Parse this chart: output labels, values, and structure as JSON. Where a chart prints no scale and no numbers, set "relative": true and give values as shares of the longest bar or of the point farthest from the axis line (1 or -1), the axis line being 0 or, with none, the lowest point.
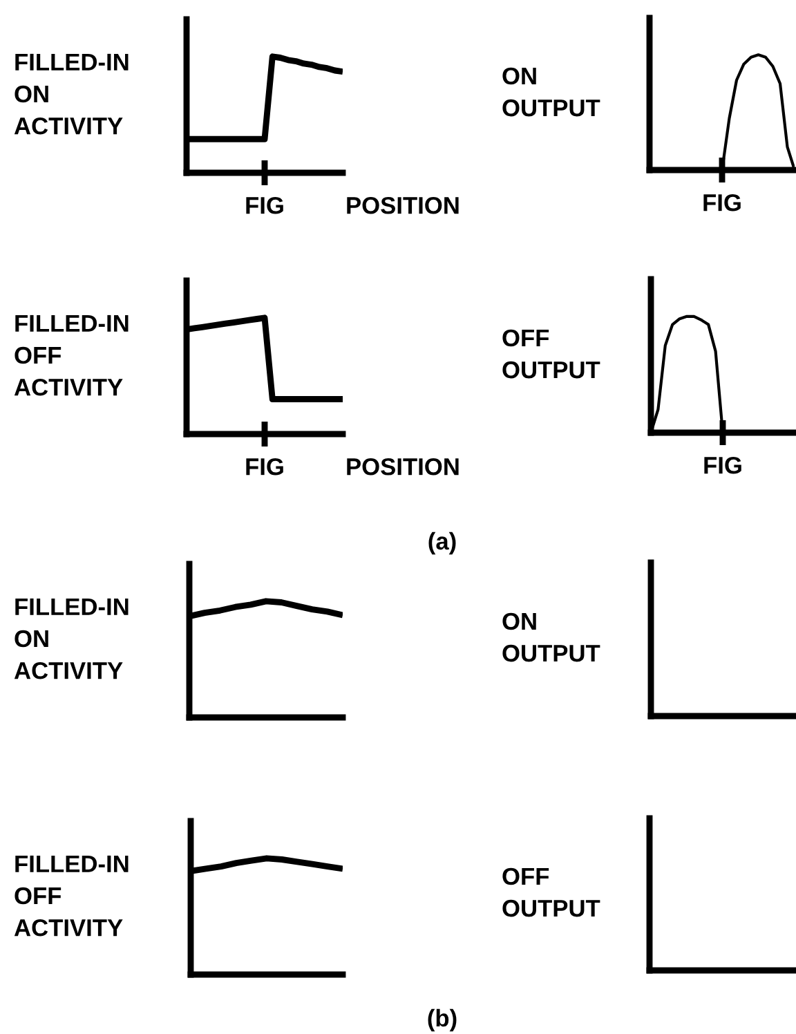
{
  "chart_data": [
    {
      "type": "line",
      "ylabel": "FILLED-IN\nON\nACTIVITY",
      "xlabel": "POSITION",
      "relative": true,
      "annotations": [
        "FIG"
      ],
      "categories": [
        null,
        null,
        null,
        null,
        null,
        null,
        null,
        null,
        null,
        null,
        null,
        null,
        null,
        null,
        null,
        null,
        null,
        null,
        null,
        null,
        null
      ],
      "series": [
        {
          "color": "#000000",
          "values": [
            0.29,
            0.29,
            0.29,
            0.29,
            0.29,
            0.29,
            0.29,
            0.29,
            0.29,
            0.29,
            0.29,
            1,
            0.99,
            0.97,
            0.96,
            0.94,
            0.93,
            0.91,
            0.9,
            0.88,
            0.87
          ]
        }
      ]
    },
    {
      "type": "line",
      "ylabel": "ON\nOUTPUT",
      "relative": true,
      "annotations": [
        "FIG"
      ],
      "categories": [
        null,
        null,
        null,
        null,
        null,
        null,
        null,
        null,
        null,
        null,
        null,
        null,
        null,
        null,
        null,
        null,
        null,
        null,
        null,
        null,
        null
      ],
      "series": [
        {
          "color": "#000000",
          "values": [
            null,
            null,
            null,
            null,
            null,
            null,
            null,
            null,
            null,
            null,
            0,
            0.45,
            0.78,
            0.92,
            0.98,
            1,
            0.98,
            0.9,
            0.75,
            0.2,
            0
          ]
        }
      ]
    },
    {
      "type": "line",
      "ylabel": "FILLED-IN\nOFF\nACTIVITY",
      "xlabel": "POSITION",
      "relative": true,
      "annotations": [
        "FIG"
      ],
      "categories": [
        null,
        null,
        null,
        null,
        null,
        null,
        null,
        null,
        null,
        null,
        null,
        null,
        null,
        null,
        null,
        null,
        null,
        null,
        null,
        null,
        null
      ],
      "series": [
        {
          "color": "#000000",
          "values": [
            0.9,
            0.91,
            0.92,
            0.93,
            0.94,
            0.95,
            0.96,
            0.97,
            0.98,
            0.99,
            1,
            0.3,
            0.3,
            0.3,
            0.3,
            0.3,
            0.3,
            0.3,
            0.3,
            0.3,
            0.3
          ]
        }
      ]
    },
    {
      "type": "line",
      "ylabel": "OFF\nOUTPUT",
      "relative": true,
      "annotations": [
        "FIG",
        "(a)"
      ],
      "categories": [
        null,
        null,
        null,
        null,
        null,
        null,
        null,
        null,
        null,
        null,
        null,
        null,
        null,
        null,
        null,
        null,
        null,
        null,
        null,
        null,
        null
      ],
      "series": [
        {
          "color": "#000000",
          "values": [
            0,
            0.2,
            0.75,
            0.93,
            0.98,
            1,
            1,
            0.97,
            0.93,
            0.7,
            0,
            null,
            null,
            null,
            null,
            null,
            null,
            null,
            null,
            null,
            null
          ]
        }
      ]
    },
    {
      "type": "line",
      "ylabel": "FILLED-IN\nON\nACTIVITY",
      "relative": true,
      "categories": [
        null,
        null,
        null,
        null,
        null,
        null,
        null,
        null,
        null,
        null,
        null
      ],
      "series": [
        {
          "color": "#000000",
          "values": [
            0.87,
            0.9,
            0.92,
            0.95,
            0.97,
            1,
            0.99,
            0.96,
            0.93,
            0.91,
            0.88
          ]
        }
      ]
    },
    {
      "type": "other",
      "ylabel": "ON\nOUTPUT"
    },
    {
      "type": "line",
      "ylabel": "FILLED-IN\nOFF\nACTIVITY",
      "relative": true,
      "categories": [
        null,
        null,
        null,
        null,
        null,
        null,
        null,
        null,
        null,
        null,
        null
      ],
      "series": [
        {
          "color": "#000000",
          "values": [
            0.89,
            0.91,
            0.93,
            0.96,
            0.98,
            1,
            0.99,
            0.97,
            0.95,
            0.93,
            0.91
          ]
        }
      ]
    },
    {
      "type": "other",
      "ylabel": "OFF\nOUTPUT",
      "annotations": [
        "(b)"
      ]
    }
  ]
}
